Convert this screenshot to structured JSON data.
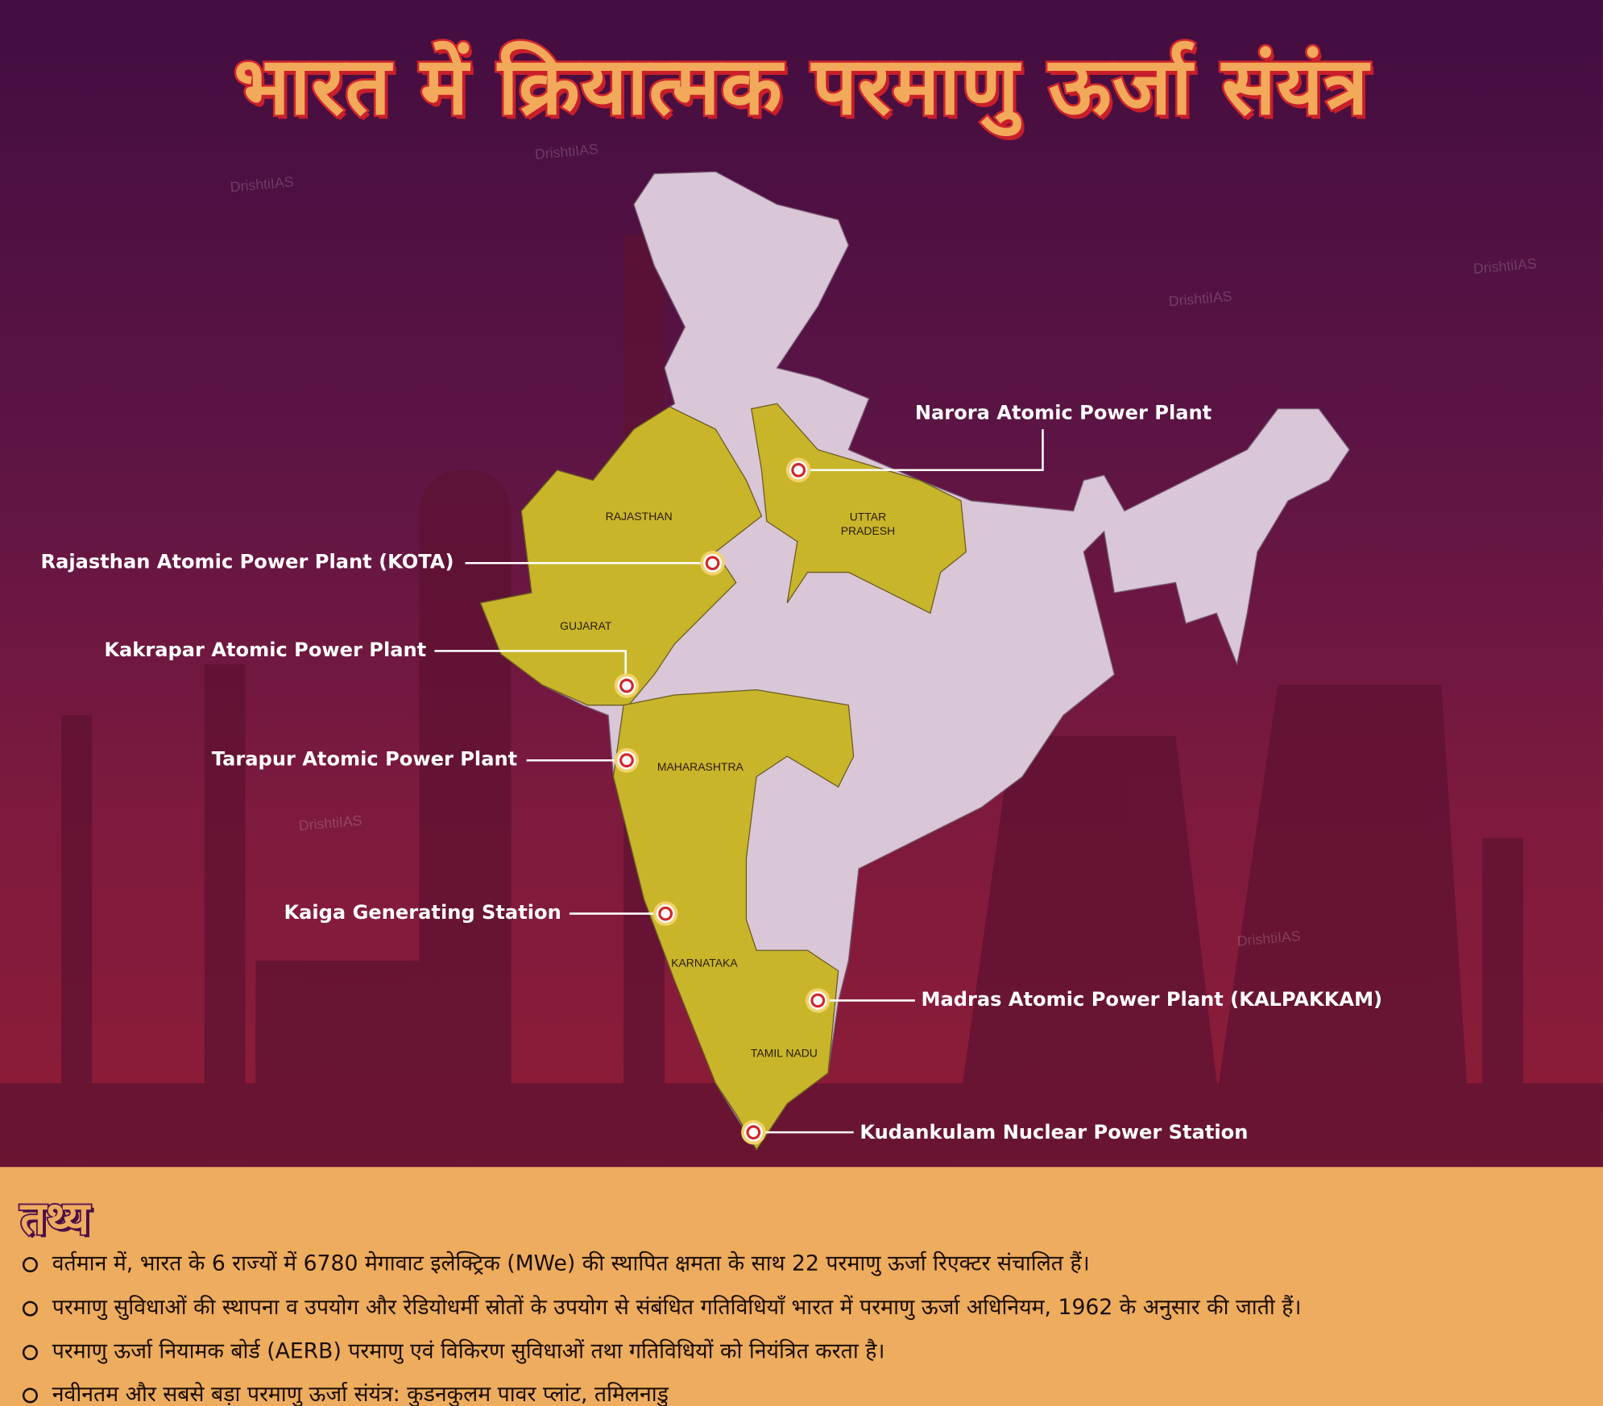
{
  "title": "भारत में क्रियात्मक परमाणु ऊर्जा संयंत्र",
  "watermark": "DrishtiIAS",
  "colors": {
    "background_top": "#430d40",
    "background_bottom": "#8e1d36",
    "map_land": "#d9c6d6",
    "highlighted_states": "#c9b52a",
    "title_fill": "#f2a95a",
    "title_stroke": "#d2262a",
    "facts_background": "#edac5e",
    "marker": "#d2262a"
  },
  "states": [
    "RAJASTHAN",
    "UTTAR PRADESH",
    "GUJARAT",
    "MAHARASHTRA",
    "KARNATAKA",
    "TAMIL NADU"
  ],
  "plants": [
    "Narora Atomic Power Plant",
    "Rajasthan Atomic Power Plant (KOTA)",
    "Kakrapar Atomic Power Plant",
    "Tarapur Atomic Power Plant",
    "Kaiga Generating Station",
    "Madras Atomic Power Plant (KALPAKKAM)",
    "Kudankulam Nuclear Power Station"
  ],
  "facts": {
    "heading": "तथ्य",
    "items": [
      "वर्तमान में, भारत के 6 राज्यों में 6780 मेगावाट इलेक्ट्रिक (MWe) की स्थापित क्षमता के साथ 22 परमाणु ऊर्जा रिएक्टर संचालित हैं।",
      "परमाणु सुविधाओं की स्थापना व उपयोग और रेडियोधर्मी स्रोतों के उपयोग से संबंधित गतिविधियाँ भारत में परमाणु ऊर्जा अधिनियम, 1962 के अनुसार की जाती हैं।",
      "परमाणु ऊर्जा नियामक बोर्ड (AERB) परमाणु एवं विकिरण सुविधाओं तथा गतिविधियों को नियंत्रित करता है।",
      "नवीनतम और सबसे बड़ा परमाणु ऊर्जा संयंत्र: कुडनकुलम पावर प्लांट, तमिलनाडु"
    ]
  }
}
